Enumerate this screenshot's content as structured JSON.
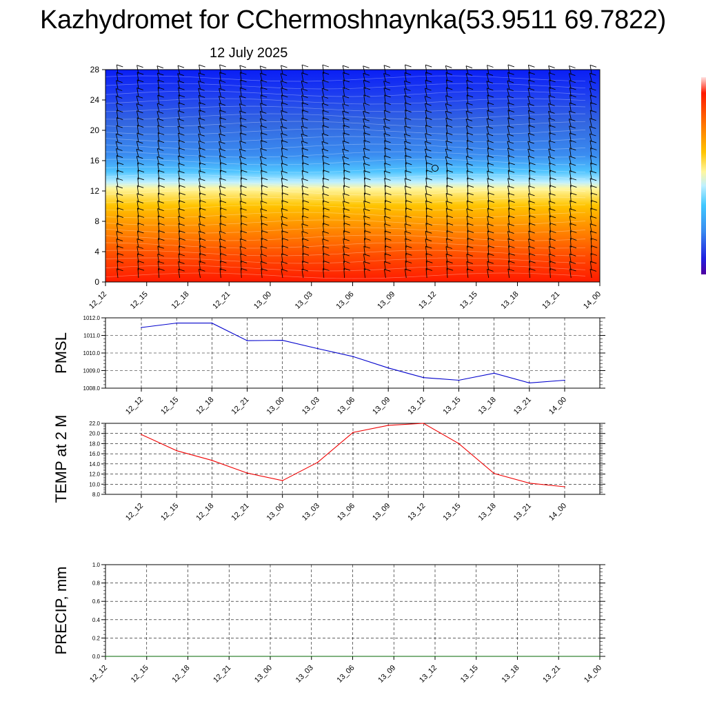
{
  "header": {
    "title": "Kazhydromet for CChermoshnaynka(53.9511 69.7822)",
    "subtitle": "12 July 2025"
  },
  "time_labels": [
    "12_12",
    "12_15",
    "12_18",
    "12_21",
    "13_00",
    "13_03",
    "13_06",
    "13_09",
    "13_12",
    "13_15",
    "13_18",
    "13_21",
    "14_00"
  ],
  "chart_data": [
    {
      "id": "cross-section",
      "type": "heatmap",
      "title": "",
      "xlabel": "",
      "ylabel": "",
      "categories": [
        "12_12",
        "12_15",
        "12_18",
        "12_21",
        "13_00",
        "13_03",
        "13_06",
        "13_09",
        "13_12",
        "13_15",
        "13_18",
        "13_21",
        "14_00"
      ],
      "yticks": [
        0,
        4,
        8,
        12,
        16,
        20,
        24,
        28
      ],
      "ylim": [
        0,
        28
      ],
      "overlays": [
        "wind barbs",
        "contours"
      ],
      "colorbar": "vertical, right edge, purple-blue-cyan-yellow-red"
    },
    {
      "id": "pmsl",
      "type": "line",
      "ylabel": "PMSL",
      "ylim": [
        1008.0,
        1012.0
      ],
      "yticks": [
        "1008.0",
        "1009.0",
        "1010.0",
        "1011.0",
        "1012.0"
      ],
      "grid": true,
      "series": [
        {
          "color": "#0000cc",
          "x": [
            "12_12",
            "12_15",
            "12_18",
            "12_21",
            "13_00",
            "13_03",
            "13_06",
            "13_09",
            "13_12",
            "13_15",
            "13_18",
            "13_21",
            "14_00"
          ],
          "values": [
            1011.45,
            1011.7,
            1011.7,
            1010.7,
            1010.72,
            1010.25,
            1009.8,
            1009.15,
            1008.6,
            1008.45,
            1008.85,
            1008.3,
            1008.45
          ]
        }
      ]
    },
    {
      "id": "temp2m",
      "type": "line",
      "ylabel": "TEMP at 2 M",
      "ylim": [
        8.0,
        22.0
      ],
      "yticks": [
        "8.0",
        "10.0",
        "12.0",
        "14.0",
        "16.0",
        "18.0",
        "20.0",
        "22.0"
      ],
      "grid": true,
      "series": [
        {
          "color": "#ee0000",
          "x": [
            "12_12",
            "12_15",
            "12_18",
            "12_21",
            "13_00",
            "13_03",
            "13_06",
            "13_09",
            "13_12",
            "13_15",
            "13_18",
            "13_21",
            "14_00"
          ],
          "values": [
            19.8,
            16.6,
            14.7,
            12.2,
            10.7,
            14.3,
            20.2,
            21.6,
            22.0,
            18.0,
            12.1,
            10.2,
            9.5
          ]
        }
      ]
    },
    {
      "id": "precip",
      "type": "line",
      "ylabel": "PRECIP, mm",
      "ylim": [
        0.0,
        1.0
      ],
      "yticks": [
        "0.0",
        "0.2",
        "0.4",
        "0.6",
        "0.8",
        "1.0"
      ],
      "grid": true,
      "series": [
        {
          "color": "#006400",
          "x": [
            "12_12",
            "12_15",
            "12_18",
            "12_21",
            "13_00",
            "13_03",
            "13_06",
            "13_09",
            "13_12",
            "13_15",
            "13_18",
            "13_21",
            "14_00"
          ],
          "values": [
            0,
            0,
            0,
            0,
            0,
            0,
            0,
            0,
            0,
            0,
            0,
            0,
            0
          ]
        }
      ]
    }
  ]
}
